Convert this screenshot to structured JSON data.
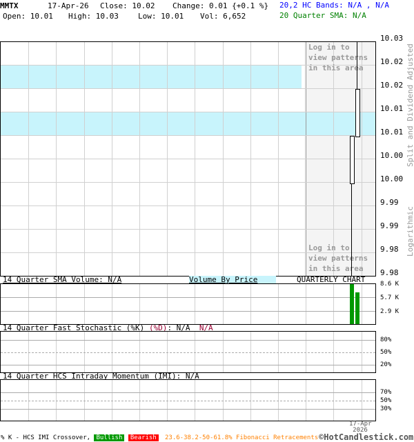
{
  "header": {
    "symbol": "MMTX",
    "date": "17-Apr-26",
    "close": "Close: 10.02",
    "change": "Change: 0.01 {+0.1 %}",
    "open": "Open: 10.01",
    "high": "High: 10.03",
    "low": "Low: 10.01",
    "vol": "Vol: 6,652",
    "bands": "20,2 HC Bands: N/A , N/A",
    "sma": "20 Quarter SMA: N/A"
  },
  "colors": {
    "bands": "#0000ff",
    "sma": "#008000",
    "volume_bar": "#009900",
    "vbp": "#c8f4fc",
    "shade": "#f4f4f4",
    "bullish": "#009900",
    "bearish": "#ff0000",
    "fib": "#ff8000",
    "stoch_d": "#990033"
  },
  "main": {
    "price_ticks": [
      "10.03",
      "10.02",
      "10.02",
      "10.01",
      "10.01",
      "10.00",
      "10.00",
      "9.99",
      "9.99",
      "9.98",
      "9.98"
    ],
    "login_top": "Log in to\nview patterns\nin this area",
    "login_bottom": "Log in to\nview patterns\nin this area",
    "side_top": "Split and Dividend Adjusted",
    "side_bottom": "Logarithmic"
  },
  "volume": {
    "title": "14 Quarter SMA Volume: N/A",
    "vbp": "Volume By Price",
    "chart_label": "QUARTERLY CHART",
    "ticks": [
      "8.6 K",
      "5.7 K",
      "2.9 K"
    ]
  },
  "stoch": {
    "title": "14 Quarter Fast Stochastic (%K)",
    "d": "(%D)",
    "k_val": ": N/A",
    "d_val": "N/A",
    "ticks": [
      "80%",
      "50%",
      "20%"
    ]
  },
  "imi": {
    "title": "14 Quarter HCS Intraday Momentum (IMI): N/A",
    "ticks": [
      "70%",
      "50%",
      "30%"
    ]
  },
  "xaxis": {
    "date1": "17-Apr",
    "date2": "2026"
  },
  "footer": {
    "legend": "% K - HCS IMI Crossover,",
    "bullish": "Bullish",
    "bearish": "Bearish",
    "fib": "23.6-38.2-50-61.8% Fibonacci Retracements",
    "brand": "©HotCandlestick.com"
  },
  "chart_data": {
    "type": "candlestick",
    "scale": "logarithmic",
    "ylim": [
      9.98,
      10.03
    ],
    "grid": true,
    "candles": [
      {
        "open": 10.01,
        "high": 10.01,
        "low": 9.98,
        "close": 10.0
      },
      {
        "open": 10.01,
        "high": 10.03,
        "low": 10.01,
        "close": 10.02
      }
    ],
    "volume": [
      8600,
      6652
    ]
  }
}
